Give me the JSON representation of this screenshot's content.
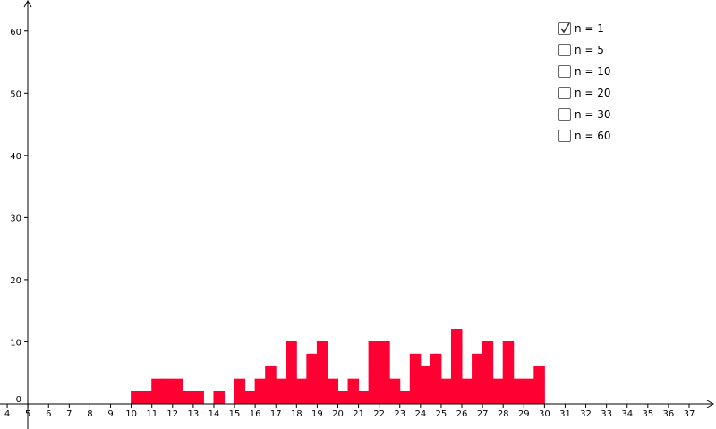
{
  "chart_data": {
    "type": "histogram",
    "color": "#ff0033",
    "bins": [
      9,
      9.5,
      10,
      10.5,
      11,
      11.5,
      12,
      12.5,
      13,
      13.5,
      14,
      14.5,
      15,
      15.5,
      16,
      16.5,
      17,
      17.5,
      18,
      18.5,
      19,
      19.5,
      20,
      20.5,
      21,
      21.5,
      22,
      22.5,
      23,
      23.5,
      24,
      24.5,
      25,
      25.5,
      26,
      26.5,
      27,
      27.5,
      28,
      28.5,
      29,
      29.5,
      30,
      30.5
    ],
    "values": [
      0,
      0,
      2,
      2,
      4,
      4,
      4,
      2,
      2,
      0,
      2,
      0,
      4,
      2,
      4,
      6,
      4,
      10,
      4,
      8,
      10,
      4,
      2,
      4,
      2,
      10,
      10,
      4,
      2,
      8,
      6,
      8,
      4,
      12,
      4,
      8,
      10,
      4,
      10,
      4,
      4,
      6,
      0
    ],
    "xlim": [
      3.65,
      38.3
    ],
    "ylim": [
      -4.03,
      65
    ],
    "xticks": [
      4,
      5,
      6,
      7,
      8,
      9,
      10,
      11,
      12,
      13,
      14,
      15,
      16,
      17,
      18,
      19,
      20,
      21,
      22,
      23,
      24,
      25,
      26,
      27,
      28,
      29,
      30,
      31,
      32,
      33,
      34,
      35,
      36,
      37
    ],
    "yticks": [
      0,
      10,
      20,
      30,
      40,
      50,
      60
    ],
    "grid": false
  },
  "checkboxes": [
    {
      "label": "n = 1",
      "checked": true
    },
    {
      "label": "n = 5",
      "checked": false
    },
    {
      "label": "n = 10",
      "checked": false
    },
    {
      "label": "n = 20",
      "checked": false
    },
    {
      "label": "n = 30",
      "checked": false
    },
    {
      "label": "n = 60",
      "checked": false
    }
  ]
}
